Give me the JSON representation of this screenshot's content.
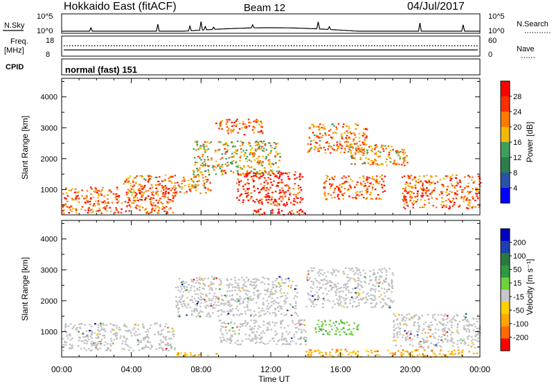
{
  "header": {
    "site": "Hokkaido East (fitACF)",
    "beam": "Beam 12",
    "date": "04/Jul/2017"
  },
  "noise_panel": {
    "label": "N.Sky",
    "right_label": "N.Search",
    "right_ticks": [
      "10^5",
      "10^0"
    ],
    "left_ticks": [
      "10^5",
      "10^0"
    ]
  },
  "freq_panel": {
    "label_line1": "Freq.",
    "label_line2": "[MHz]",
    "left_ticks": [
      "18",
      "8"
    ],
    "right_ticks": [
      "60",
      "0"
    ],
    "right_label": "Nave"
  },
  "cpid_panel": {
    "label": "CPID",
    "value": "normal (fast) 151"
  },
  "colors": {
    "power_scale": [
      "#0000ff",
      "#2a52a8",
      "#2e7d4f",
      "#3f9f5a",
      "#f5b800",
      "#ff7b00",
      "#ff3000",
      "#ff0000"
    ],
    "velocity_scale": [
      "#ff0000",
      "#ff6a00",
      "#ffa500",
      "#ffd000",
      "#c8c8c8",
      "#6fd13f",
      "#2f9a3f",
      "#2a7a40",
      "#1f3fb0",
      "#0000c0"
    ],
    "ground_scatter": "#c0c0c0"
  },
  "chart_data": [
    {
      "type": "heatmap",
      "panel": "power",
      "ylabel": "Slant Range [km]",
      "yticks": [
        "4000",
        "3000",
        "2000",
        "1000"
      ],
      "ylim": [
        180,
        4600
      ],
      "xlim_hours": [
        0,
        24
      ],
      "colorbar": {
        "label": "Power [dB]",
        "ticks": [
          "28",
          "24",
          "20",
          "16",
          "12",
          "8",
          "4"
        ]
      },
      "regions": [
        {
          "t0": 0.0,
          "t1": 6.5,
          "r0": 250,
          "r1": 1100,
          "level": 24
        },
        {
          "t0": 3.5,
          "t1": 8.5,
          "r0": 900,
          "r1": 1500,
          "level": 22
        },
        {
          "t0": 7.5,
          "t1": 12.5,
          "r0": 1500,
          "r1": 2600,
          "level": 18
        },
        {
          "t0": 8.8,
          "t1": 11.5,
          "r0": 2800,
          "r1": 3300,
          "level": 24
        },
        {
          "t0": 10.0,
          "t1": 13.8,
          "r0": 500,
          "r1": 1600,
          "level": 28
        },
        {
          "t0": 11.0,
          "t1": 14.0,
          "r0": 200,
          "r1": 400,
          "level": 28
        },
        {
          "t0": 14.0,
          "t1": 17.5,
          "r0": 2200,
          "r1": 3150,
          "level": 22
        },
        {
          "t0": 15.0,
          "t1": 18.5,
          "r0": 700,
          "r1": 1500,
          "level": 24
        },
        {
          "t0": 16.5,
          "t1": 19.8,
          "r0": 1800,
          "r1": 2500,
          "level": 20
        },
        {
          "t0": 19.5,
          "t1": 24.0,
          "r0": 400,
          "r1": 1500,
          "level": 24
        }
      ]
    },
    {
      "type": "heatmap",
      "panel": "velocity",
      "ylabel": "Slant Range [km]",
      "xlabel": "Time UT",
      "xticks": [
        "00:00",
        "04:00",
        "08:00",
        "12:00",
        "16:00",
        "20:00",
        "00:00"
      ],
      "yticks": [
        "4000",
        "3000",
        "2000",
        "1000"
      ],
      "ylim": [
        180,
        4600
      ],
      "xlim_hours": [
        0,
        24
      ],
      "colorbar": {
        "label": "Velocity [m s⁻¹]",
        "ticks": [
          "200",
          "100",
          "50",
          "15",
          "-15",
          "-50",
          "-100",
          "-200"
        ]
      },
      "regions": [
        {
          "t0": 0.0,
          "t1": 6.5,
          "r0": 400,
          "r1": 1300,
          "kind": "ground"
        },
        {
          "t0": 6.5,
          "t1": 13.5,
          "r0": 1500,
          "r1": 2800,
          "kind": "ground"
        },
        {
          "t0": 9.0,
          "t1": 14.0,
          "r0": 600,
          "r1": 1400,
          "kind": "ground"
        },
        {
          "t0": 14.0,
          "t1": 19.0,
          "r0": 1800,
          "r1": 3100,
          "kind": "ground"
        },
        {
          "t0": 14.5,
          "t1": 17.0,
          "r0": 900,
          "r1": 1400,
          "kind": "positive"
        },
        {
          "t0": 19.0,
          "t1": 24.0,
          "r0": 500,
          "r1": 1600,
          "kind": "ground"
        },
        {
          "t0": 6.5,
          "t1": 9.0,
          "r0": 200,
          "r1": 350,
          "kind": "negative"
        },
        {
          "t0": 14.0,
          "t1": 24.0,
          "r0": 200,
          "r1": 450,
          "kind": "negative"
        }
      ]
    }
  ]
}
